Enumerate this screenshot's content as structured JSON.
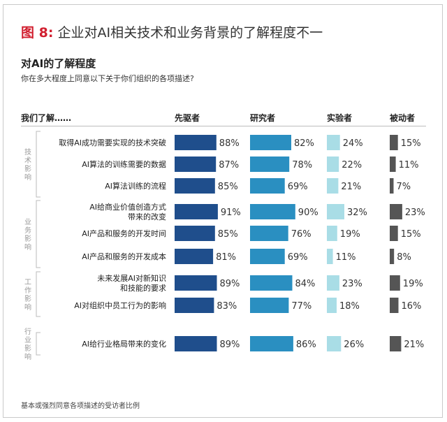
{
  "figure": {
    "number": "图 8:",
    "title": "企业对AI相关技术和业务背景的了解程度不一",
    "subtitle": "对AI的了解程度",
    "question": "你在多大程度上同意以下关于你们组织的各项描述?",
    "footnote": "基本或强烈同意各项描述的受访者比例"
  },
  "chart_data": {
    "type": "bar",
    "orientation": "horizontal",
    "row_header": "我们了解……",
    "categories": [
      "取得AI成功需要实现的技术突破",
      "AI算法的训练需要的数据",
      "AI算法训练的流程",
      "AI给商业价值创造方式带来的改变",
      "AI产品和服务的开发时间",
      "AI产品和服务的开发成本",
      "未来发展AI对新知识和技能的要求",
      "AI对组织中员工行为的影响",
      "AI给行业格局带来的变化"
    ],
    "category_lines": [
      [
        "取得AI成功需要实现的技术突破"
      ],
      [
        "AI算法的训练需要的数据"
      ],
      [
        "AI算法训练的流程"
      ],
      [
        "AI给商业价值创造方式",
        "带来的改变"
      ],
      [
        "AI产品和服务的开发时间"
      ],
      [
        "AI产品和服务的开发成本"
      ],
      [
        "未来发展AI对新知识",
        "和技能的要求"
      ],
      [
        "AI对组织中员工行为的影响"
      ],
      [
        "AI给行业格局带来的变化"
      ]
    ],
    "groups": [
      {
        "label": "技术影响",
        "rows": [
          0,
          1,
          2
        ]
      },
      {
        "label": "业务影响",
        "rows": [
          3,
          4,
          5
        ]
      },
      {
        "label": "工作影响",
        "rows": [
          6,
          7
        ]
      },
      {
        "label": "行业影响",
        "rows": [
          8
        ]
      }
    ],
    "series": [
      {
        "name": "先驱者",
        "color": "#1f4e8c",
        "values": [
          88,
          87,
          85,
          91,
          85,
          81,
          89,
          83,
          89
        ]
      },
      {
        "name": "研究者",
        "color": "#2a8fc1",
        "values": [
          82,
          78,
          69,
          90,
          76,
          69,
          84,
          77,
          86
        ]
      },
      {
        "name": "实验者",
        "color": "#a9dde6",
        "values": [
          24,
          22,
          21,
          32,
          19,
          11,
          23,
          18,
          26
        ]
      },
      {
        "name": "被动者",
        "color": "#555555",
        "values": [
          15,
          11,
          7,
          23,
          15,
          8,
          19,
          16,
          21
        ]
      }
    ],
    "value_suffix": "%",
    "xlim": [
      0,
      100
    ],
    "legend": "column-headers"
  }
}
